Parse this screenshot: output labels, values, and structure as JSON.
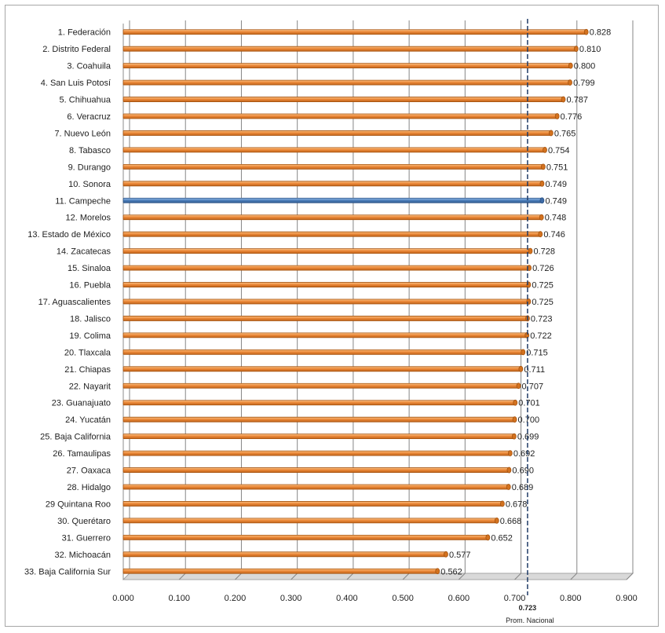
{
  "chart_data": {
    "type": "bar",
    "orientation": "horizontal",
    "categories": [
      "1. Federación",
      "2. Distrito Federal",
      "3. Coahuila",
      "4. San Luis Potosí",
      "5. Chihuahua",
      "6. Veracruz",
      "7. Nuevo León",
      "8. Tabasco",
      "9. Durango",
      "10. Sonora",
      "11. Campeche",
      "12. Morelos",
      "13. Estado de México",
      "14. Zacatecas",
      "15. Sinaloa",
      "16. Puebla",
      "17. Aguascalientes",
      "18. Jalisco",
      "19. Colima",
      "20. Tlaxcala",
      "21. Chiapas",
      "22. Nayarit",
      "23. Guanajuato",
      "24. Yucatán",
      "25. Baja California",
      "26. Tamaulipas",
      "27. Oaxaca",
      "28. Hidalgo",
      "29 Quintana Roo",
      "30. Querétaro",
      "31. Guerrero",
      "32. Michoacán",
      "33. Baja California Sur"
    ],
    "values": [
      0.828,
      0.81,
      0.8,
      0.799,
      0.787,
      0.776,
      0.765,
      0.754,
      0.751,
      0.749,
      0.749,
      0.748,
      0.746,
      0.728,
      0.726,
      0.725,
      0.725,
      0.723,
      0.722,
      0.715,
      0.711,
      0.707,
      0.701,
      0.7,
      0.699,
      0.692,
      0.69,
      0.689,
      0.678,
      0.668,
      0.652,
      0.577,
      0.562
    ],
    "value_labels": [
      "0.828",
      "0.810",
      "0.800",
      "0.799",
      "0.787",
      "0.776",
      "0.765",
      "0.754",
      "0.751",
      "0.749",
      "0.749",
      "0.748",
      "0.746",
      "0.728",
      "0.726",
      "0.725",
      "0.725",
      "0.723",
      "0.722",
      "0.715",
      "0.711",
      "0.707",
      "0.701",
      "0.700",
      "0.699",
      "0.692",
      "0.690",
      "0.689",
      "0.678",
      "0.668",
      "0.652",
      "0.577",
      "0.562"
    ],
    "highlight_index": 10,
    "xlim": [
      0,
      0.9
    ],
    "xticks": [
      0,
      0.1,
      0.2,
      0.3,
      0.4,
      0.5,
      0.6,
      0.7,
      0.8,
      0.9
    ],
    "xtick_labels": [
      "0.000",
      "0.100",
      "0.200",
      "0.300",
      "0.400",
      "0.500",
      "0.600",
      "0.700",
      "0.800",
      "0.900"
    ],
    "reference_line": {
      "value": 0.723,
      "value_label": "0.723",
      "label": "Prom. Nacional",
      "style": "dashed"
    },
    "vertical_grid": true,
    "legend": "none",
    "colors": {
      "bar": "#ed8a3a",
      "bar_edge": "#a65410",
      "highlight": "#4f81bd",
      "highlight_edge": "#2a5283",
      "reference_line": "#1f3b66",
      "grid": "#868686"
    }
  }
}
